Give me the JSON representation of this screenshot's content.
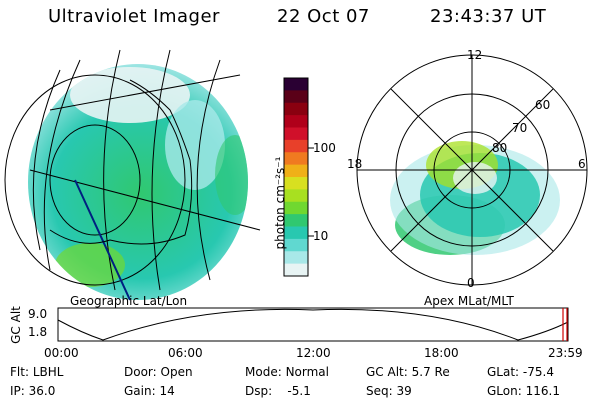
{
  "header": {
    "title": "Ultraviolet Imager",
    "date": "22 Oct 07",
    "time": "23:43:37 UT"
  },
  "left_panel": {
    "caption": "Geographic Lat/Lon"
  },
  "right_panel": {
    "caption": "Apex MLat/MLT",
    "mlt_labels": {
      "top": "12",
      "left": "18",
      "right": "6",
      "bottom": "0"
    },
    "lat_labels": [
      "60",
      "70",
      "80"
    ]
  },
  "colorbar": {
    "label": "photon cm⁻²s⁻¹",
    "ticks": [
      "100",
      "10"
    ],
    "colors": [
      "#2a0033",
      "#5a0018",
      "#8a0010",
      "#b0001a",
      "#d0102a",
      "#e8402a",
      "#f07a20",
      "#f0b018",
      "#d8e020",
      "#a8e020",
      "#70d830",
      "#30c870",
      "#28c8b0",
      "#60d8d0",
      "#a8e8e8",
      "#e8f4f4"
    ]
  },
  "altitude_plot": {
    "ylabel": "GC Alt",
    "ymax": "9.0",
    "ymin": "1.8",
    "xticks": [
      "00:00",
      "06:00",
      "12:00",
      "18:00",
      "23:59"
    ]
  },
  "info": {
    "filter_label": "Flt:",
    "filter_value": "LBHL",
    "ip_label": "IP:",
    "ip_value": "36.0",
    "door_label": "Door:",
    "door_value": "Open",
    "gain_label": "Gain:",
    "gain_value": "14",
    "mode_label": "Mode:",
    "mode_value": "Normal",
    "dsp_label": "Dsp:",
    "dsp_value": "-5.1",
    "gcalt_label": "GC Alt:",
    "gcalt_value": "5.7 Re",
    "seq_label": "Seq:",
    "seq_value": "39",
    "glat_label": "GLat:",
    "glat_value": "-75.4",
    "glon_label": "GLon:",
    "glon_value": "116.1"
  }
}
